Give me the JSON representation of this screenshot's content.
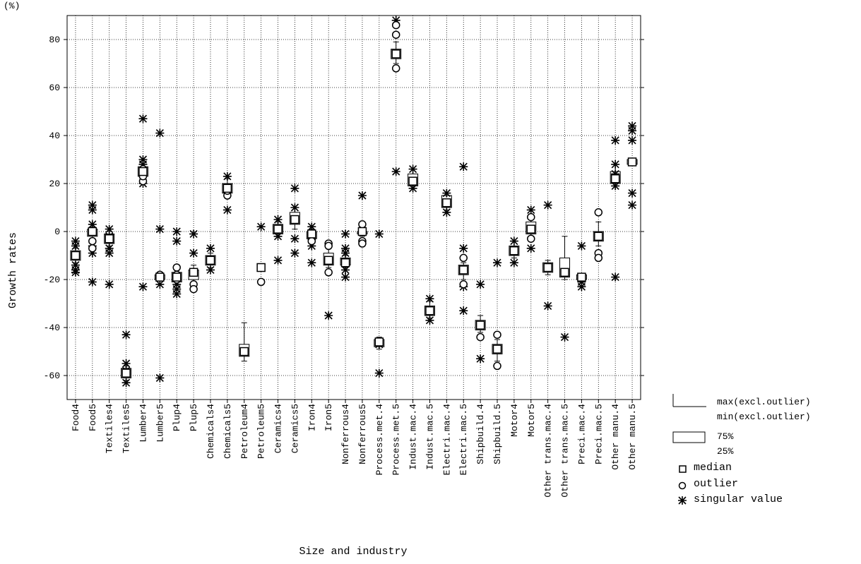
{
  "chart_data": {
    "type": "box",
    "y_unit": "(%)",
    "y_label": "Growth rates",
    "x_label": "Size and industry",
    "categories": [
      "Food4",
      "Food5",
      "Textiles4",
      "Textiles5",
      "Lumber4",
      "Lumber5",
      "Plup4",
      "Plup5",
      "Chemicals4",
      "Chemicals5",
      "Petroleum4",
      "Petroleum5",
      "Ceramics4",
      "Ceramics5",
      "Iron4",
      "Iron5",
      "Nonferrous4",
      "Nonferrous5",
      "Process.met.4",
      "Process.met.5",
      "Indust.mac.4",
      "Indust.mac.5",
      "Electri.mac.4",
      "Electri.mac.5",
      "Shipbuild.4",
      "Shipbuild.5",
      "Motor4",
      "Motor5",
      "Other trans.mac.4",
      "Other trans.mac.5",
      "Preci.mac.4",
      "Preci.mac.5",
      "Other manu.4",
      "Other manu.5"
    ],
    "median": [
      -10,
      0,
      -3,
      -59,
      25,
      -19,
      -19,
      -17,
      -12,
      18,
      -50,
      -15,
      1,
      5,
      -1,
      -12,
      -13,
      0,
      -46,
      74,
      21,
      -33,
      12,
      -16,
      -39,
      -49,
      -8,
      1,
      -15,
      -17,
      -19,
      -2,
      22,
      29
    ],
    "q1": [
      -12,
      -2,
      -5,
      -61,
      23,
      -20,
      -21,
      -20,
      -14,
      16,
      -52,
      -15,
      -1,
      3,
      -3,
      -14,
      -14,
      -1,
      -48,
      72,
      19,
      -35,
      10,
      -18,
      -41,
      -51,
      -10,
      -1,
      -17,
      -19,
      -20,
      -4,
      20,
      28
    ],
    "q3": [
      -8,
      1,
      -1,
      -57,
      27,
      -18,
      -17,
      -16,
      -10,
      20,
      -47,
      -15,
      3,
      8,
      0,
      -9,
      -11,
      0,
      -45,
      76,
      24,
      -31,
      15,
      -14,
      -37,
      -47,
      -6,
      4,
      -13,
      -11,
      -18,
      0,
      25,
      30
    ],
    "whisker_low": [
      -13,
      -3,
      -6,
      -62,
      22,
      -20,
      -22,
      -22,
      -15,
      15,
      -54,
      -15,
      -2,
      1,
      -4,
      -15,
      -15,
      -2,
      -49,
      70,
      18,
      -36,
      9,
      -20,
      -42,
      -54,
      -11,
      -3,
      -18,
      -20,
      -21,
      -6,
      19,
      28
    ],
    "whisker_high": [
      -7,
      2,
      0,
      -56,
      28,
      -18,
      -16,
      -14,
      -9,
      22,
      -38,
      -15,
      4,
      10,
      1,
      -7,
      -10,
      1,
      -44,
      79,
      26,
      -29,
      16,
      -13,
      -35,
      -45,
      -4,
      6,
      -12,
      -2,
      -18,
      4,
      28,
      30
    ],
    "outliers": [
      [],
      [
        0,
        -4,
        -7
      ],
      [],
      [],
      [
        21,
        23,
        26
      ],
      [
        -18,
        -19
      ],
      [
        -15,
        -18,
        -20
      ],
      [
        -22,
        -24
      ],
      [],
      [
        15,
        17
      ],
      [],
      [
        -21
      ],
      [],
      [],
      [
        -1,
        -3,
        -4
      ],
      [
        -5,
        -6,
        -17
      ],
      [],
      [
        3,
        -4,
        -5
      ],
      [],
      [
        86,
        82,
        68
      ],
      [],
      [],
      [],
      [
        -11,
        -22
      ],
      [
        -44
      ],
      [
        -43,
        -56
      ],
      [],
      [
        6,
        -3
      ],
      [],
      [],
      [],
      [
        8,
        -9,
        -11
      ],
      [],
      []
    ],
    "singular": [
      [
        -4,
        -6,
        -14,
        -17,
        -16
      ],
      [
        11,
        9,
        3,
        -6,
        -9,
        -21
      ],
      [
        1,
        -2,
        -7,
        -9,
        -22
      ],
      [
        -43,
        -55,
        -63,
        -58
      ],
      [
        47,
        30,
        28,
        20,
        -23
      ],
      [
        41,
        1,
        -22,
        -61
      ],
      [
        0,
        -4,
        -22,
        -24,
        -26
      ],
      [
        -1,
        -9
      ],
      [
        -7,
        -16
      ],
      [
        23,
        9
      ],
      [],
      [
        2
      ],
      [
        5,
        -2,
        -12
      ],
      [
        18,
        10,
        -3,
        -9
      ],
      [
        2,
        -6,
        -13
      ],
      [
        -35
      ],
      [
        -1,
        -7,
        -9,
        -16,
        -19
      ],
      [
        15
      ],
      [
        -1,
        -47,
        -59
      ],
      [
        88,
        25
      ],
      [
        26,
        18
      ],
      [
        -28,
        -37
      ],
      [
        16,
        8
      ],
      [
        27,
        -7,
        -23,
        -33
      ],
      [
        -22,
        -53
      ],
      [
        -13
      ],
      [
        -4,
        -13
      ],
      [
        9,
        -7
      ],
      [
        11,
        -31
      ],
      [
        -44
      ],
      [
        -6,
        -21,
        -23
      ],
      [],
      [
        38,
        28,
        24,
        19,
        -19
      ],
      [
        44,
        42,
        38,
        16,
        11
      ]
    ],
    "ylim": [
      -70,
      90
    ],
    "yticks": [
      -60,
      -40,
      -20,
      0,
      20,
      40,
      60,
      80
    ],
    "grid": true,
    "legend": {
      "max": "max(excl.outlier)",
      "min": "min(excl.outlier)",
      "q3": "75%",
      "q1": "25%",
      "median": "median",
      "outlier": "outlier",
      "singular": "singular value"
    }
  }
}
